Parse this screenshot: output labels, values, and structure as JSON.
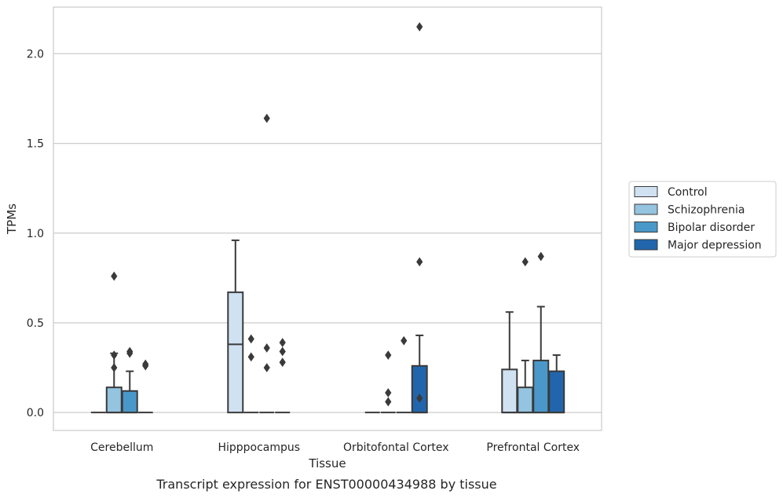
{
  "chart_data": {
    "type": "boxplot",
    "title": "",
    "caption": "Transcript expression for ENST00000434988 by tissue",
    "xlabel": "Tissue",
    "ylabel": "TPMs",
    "ylim": [
      -0.1,
      2.26
    ],
    "yticks": [
      0.0,
      0.5,
      1.0,
      1.5,
      2.0
    ],
    "ytick_labels": [
      "0.0",
      "0.5",
      "1.0",
      "1.5",
      "2.0"
    ],
    "grid": "horizontal",
    "legend_position": "right",
    "categories": [
      "Cerebellum",
      "Hipppocampus",
      "Orbitofontal Cortex",
      "Prefrontal Cortex"
    ],
    "series": [
      {
        "name": "Control",
        "color": "#d0e1f2",
        "boxes": [
          {
            "q1": 0.0,
            "median": 0.0,
            "q3": 0.0,
            "whisker_low": 0.0,
            "whisker_high": 0.0,
            "outliers": []
          },
          {
            "q1": 0.0,
            "median": 0.38,
            "q3": 0.67,
            "whisker_low": 0.0,
            "whisker_high": 0.96,
            "outliers": []
          },
          {
            "q1": 0.0,
            "median": 0.0,
            "q3": 0.0,
            "whisker_low": 0.0,
            "whisker_high": 0.0,
            "outliers": []
          },
          {
            "q1": 0.0,
            "median": 0.0,
            "q3": 0.24,
            "whisker_low": 0.0,
            "whisker_high": 0.56,
            "outliers": []
          }
        ]
      },
      {
        "name": "Schizophrenia",
        "color": "#94c4df",
        "boxes": [
          {
            "q1": 0.0,
            "median": 0.0,
            "q3": 0.14,
            "whisker_low": 0.0,
            "whisker_high": 0.33,
            "outliers": [
              0.32,
              0.25,
              0.76
            ]
          },
          {
            "q1": 0.0,
            "median": 0.0,
            "q3": 0.0,
            "whisker_low": 0.0,
            "whisker_high": 0.0,
            "outliers": [
              0.41,
              0.31
            ]
          },
          {
            "q1": 0.0,
            "median": 0.0,
            "q3": 0.0,
            "whisker_low": 0.0,
            "whisker_high": 0.0,
            "outliers": [
              0.32,
              0.11,
              0.06
            ]
          },
          {
            "q1": 0.0,
            "median": 0.0,
            "q3": 0.14,
            "whisker_low": 0.0,
            "whisker_high": 0.29,
            "outliers": [
              0.84
            ]
          }
        ]
      },
      {
        "name": "Bipolar disorder",
        "color": "#4a98c9",
        "boxes": [
          {
            "q1": 0.0,
            "median": 0.0,
            "q3": 0.12,
            "whisker_low": 0.0,
            "whisker_high": 0.23,
            "outliers": [
              0.34,
              0.33
            ]
          },
          {
            "q1": 0.0,
            "median": 0.0,
            "q3": 0.0,
            "whisker_low": 0.0,
            "whisker_high": 0.0,
            "outliers": [
              0.36,
              0.25,
              1.64
            ]
          },
          {
            "q1": 0.0,
            "median": 0.0,
            "q3": 0.0,
            "whisker_low": 0.0,
            "whisker_high": 0.0,
            "outliers": [
              0.4
            ]
          },
          {
            "q1": 0.0,
            "median": 0.0,
            "q3": 0.29,
            "whisker_low": 0.0,
            "whisker_high": 0.59,
            "outliers": [
              0.87
            ]
          }
        ]
      },
      {
        "name": "Major depression",
        "color": "#2166ac",
        "boxes": [
          {
            "q1": 0.0,
            "median": 0.0,
            "q3": 0.0,
            "whisker_low": 0.0,
            "whisker_high": 0.0,
            "outliers": [
              0.27,
              0.26
            ]
          },
          {
            "q1": 0.0,
            "median": 0.0,
            "q3": 0.0,
            "whisker_low": 0.0,
            "whisker_high": 0.0,
            "outliers": [
              0.39,
              0.34,
              0.28
            ]
          },
          {
            "q1": 0.0,
            "median": 0.0,
            "q3": 0.26,
            "whisker_low": 0.0,
            "whisker_high": 0.43,
            "outliers": [
              0.08,
              0.84,
              2.15
            ]
          },
          {
            "q1": 0.0,
            "median": 0.0,
            "q3": 0.23,
            "whisker_low": 0.0,
            "whisker_high": 0.32,
            "outliers": []
          }
        ]
      }
    ]
  }
}
